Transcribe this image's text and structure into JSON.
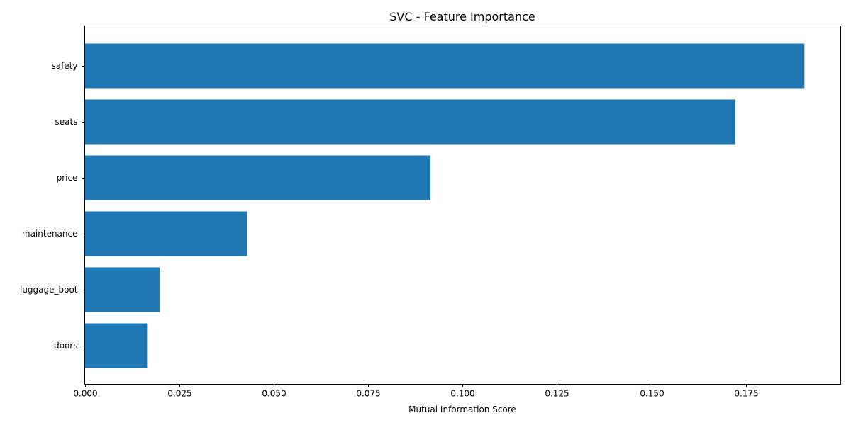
{
  "chart_data": {
    "type": "bar",
    "orientation": "horizontal",
    "title": "SVC - Feature Importance",
    "xlabel": "Mutual Information Score",
    "ylabel": "",
    "categories": [
      "doors",
      "luggage_boot",
      "maintenance",
      "price",
      "seats",
      "safety"
    ],
    "values": [
      0.0165,
      0.0198,
      0.043,
      0.0915,
      0.1722,
      0.1905
    ],
    "xlim": [
      0,
      0.2
    ],
    "x_ticks": [
      0.0,
      0.025,
      0.05,
      0.075,
      0.1,
      0.125,
      0.15,
      0.175
    ],
    "x_tick_labels": [
      "0.000",
      "0.025",
      "0.050",
      "0.075",
      "0.100",
      "0.125",
      "0.150",
      "0.175"
    ],
    "bar_color": "#1f77b4",
    "grid": false,
    "legend": "none"
  }
}
